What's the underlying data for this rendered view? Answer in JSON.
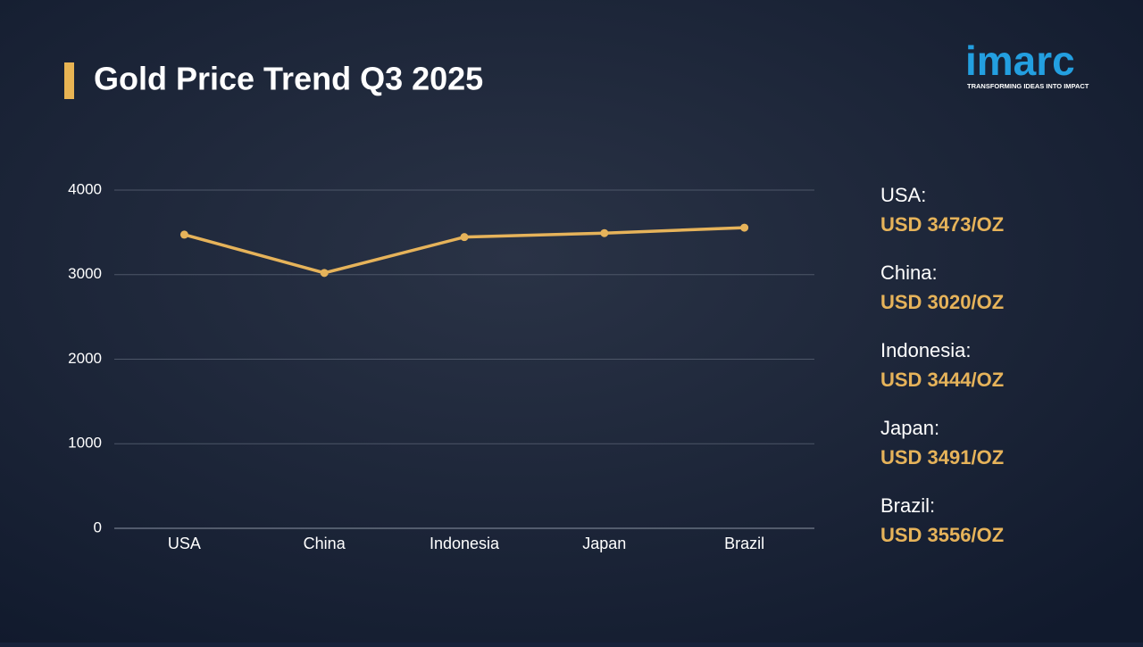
{
  "chart_data": {
    "type": "line",
    "title": "Gold Price Trend Q3 2025",
    "categories": [
      "USA",
      "China",
      "Indonesia",
      "Japan",
      "Brazil"
    ],
    "values": [
      3473,
      3020,
      3444,
      3491,
      3556
    ],
    "value_labels": [
      "USD 3473/OZ",
      "USD 3020/OZ",
      "USD 3444/OZ",
      "USD 3491/OZ",
      "USD 3556/OZ"
    ],
    "summary_labels": [
      "USA:",
      "China:",
      "Indonesia:",
      "Japan:",
      "Brazil:"
    ],
    "color": "#e6b35a",
    "ylim": [
      0,
      4000
    ],
    "yticks": [
      0,
      1000,
      2000,
      3000,
      4000
    ],
    "grid": true
  },
  "logo": {
    "name": "imarc",
    "tagline": "TRANSFORMING IDEAS INTO IMPACT"
  }
}
